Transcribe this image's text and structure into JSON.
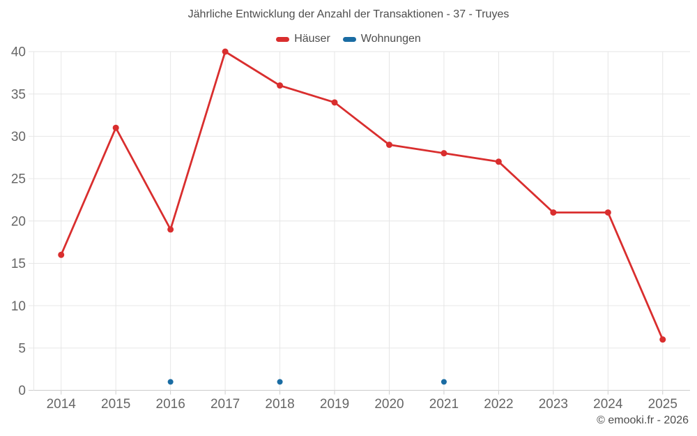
{
  "chart_data": {
    "type": "line",
    "title": "Jährliche Entwicklung der Anzahl der Transaktionen - 37 - Truyes",
    "xlabel": "",
    "ylabel": "",
    "categories": [
      "2014",
      "2015",
      "2016",
      "2017",
      "2018",
      "2019",
      "2020",
      "2021",
      "2022",
      "2023",
      "2024",
      "2025"
    ],
    "series": [
      {
        "name": "Häuser",
        "color": "#d92e2e",
        "marker_radius": 4.5,
        "values": [
          16,
          31,
          19,
          40,
          36,
          34,
          29,
          28,
          27,
          21,
          21,
          6
        ]
      },
      {
        "name": "Wohnungen",
        "color": "#1a6ca3",
        "marker_radius": 4,
        "values": [
          null,
          null,
          1,
          null,
          1,
          null,
          null,
          1,
          null,
          null,
          null,
          null
        ]
      }
    ],
    "ylim": [
      0,
      40
    ],
    "yticks": [
      0,
      5,
      10,
      15,
      20,
      25,
      30,
      35,
      40
    ],
    "grid": true,
    "legend_position": "top"
  },
  "footer": {
    "copyright": "© emooki.fr - 2026"
  },
  "style": {
    "grid_color": "#e6e6e6",
    "axis_color": "#cccccc",
    "tick_label_color": "#666666",
    "title_color": "#4d4d4d"
  }
}
